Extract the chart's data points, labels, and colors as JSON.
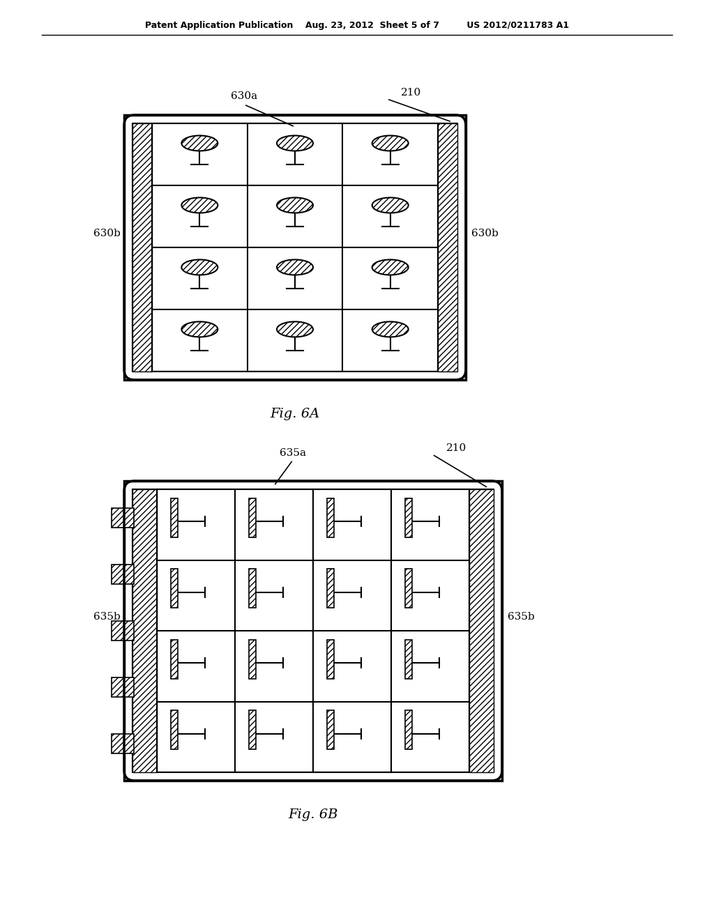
{
  "bg_color": "#ffffff",
  "line_color": "#000000",
  "hatch_color": "#000000",
  "header_text": "Patent Application Publication    Aug. 23, 2012  Sheet 5 of 7         US 2012/0211783 A1",
  "fig6a_label": "Fig. 6A",
  "fig6b_label": "Fig. 6B",
  "label_630a": "630a",
  "label_630b_left": "630b",
  "label_630b_right": "630b",
  "label_210_6a": "210",
  "label_635a": "635a",
  "label_635b_left": "635b",
  "label_635b_right": "635b",
  "label_210_6b": "210"
}
